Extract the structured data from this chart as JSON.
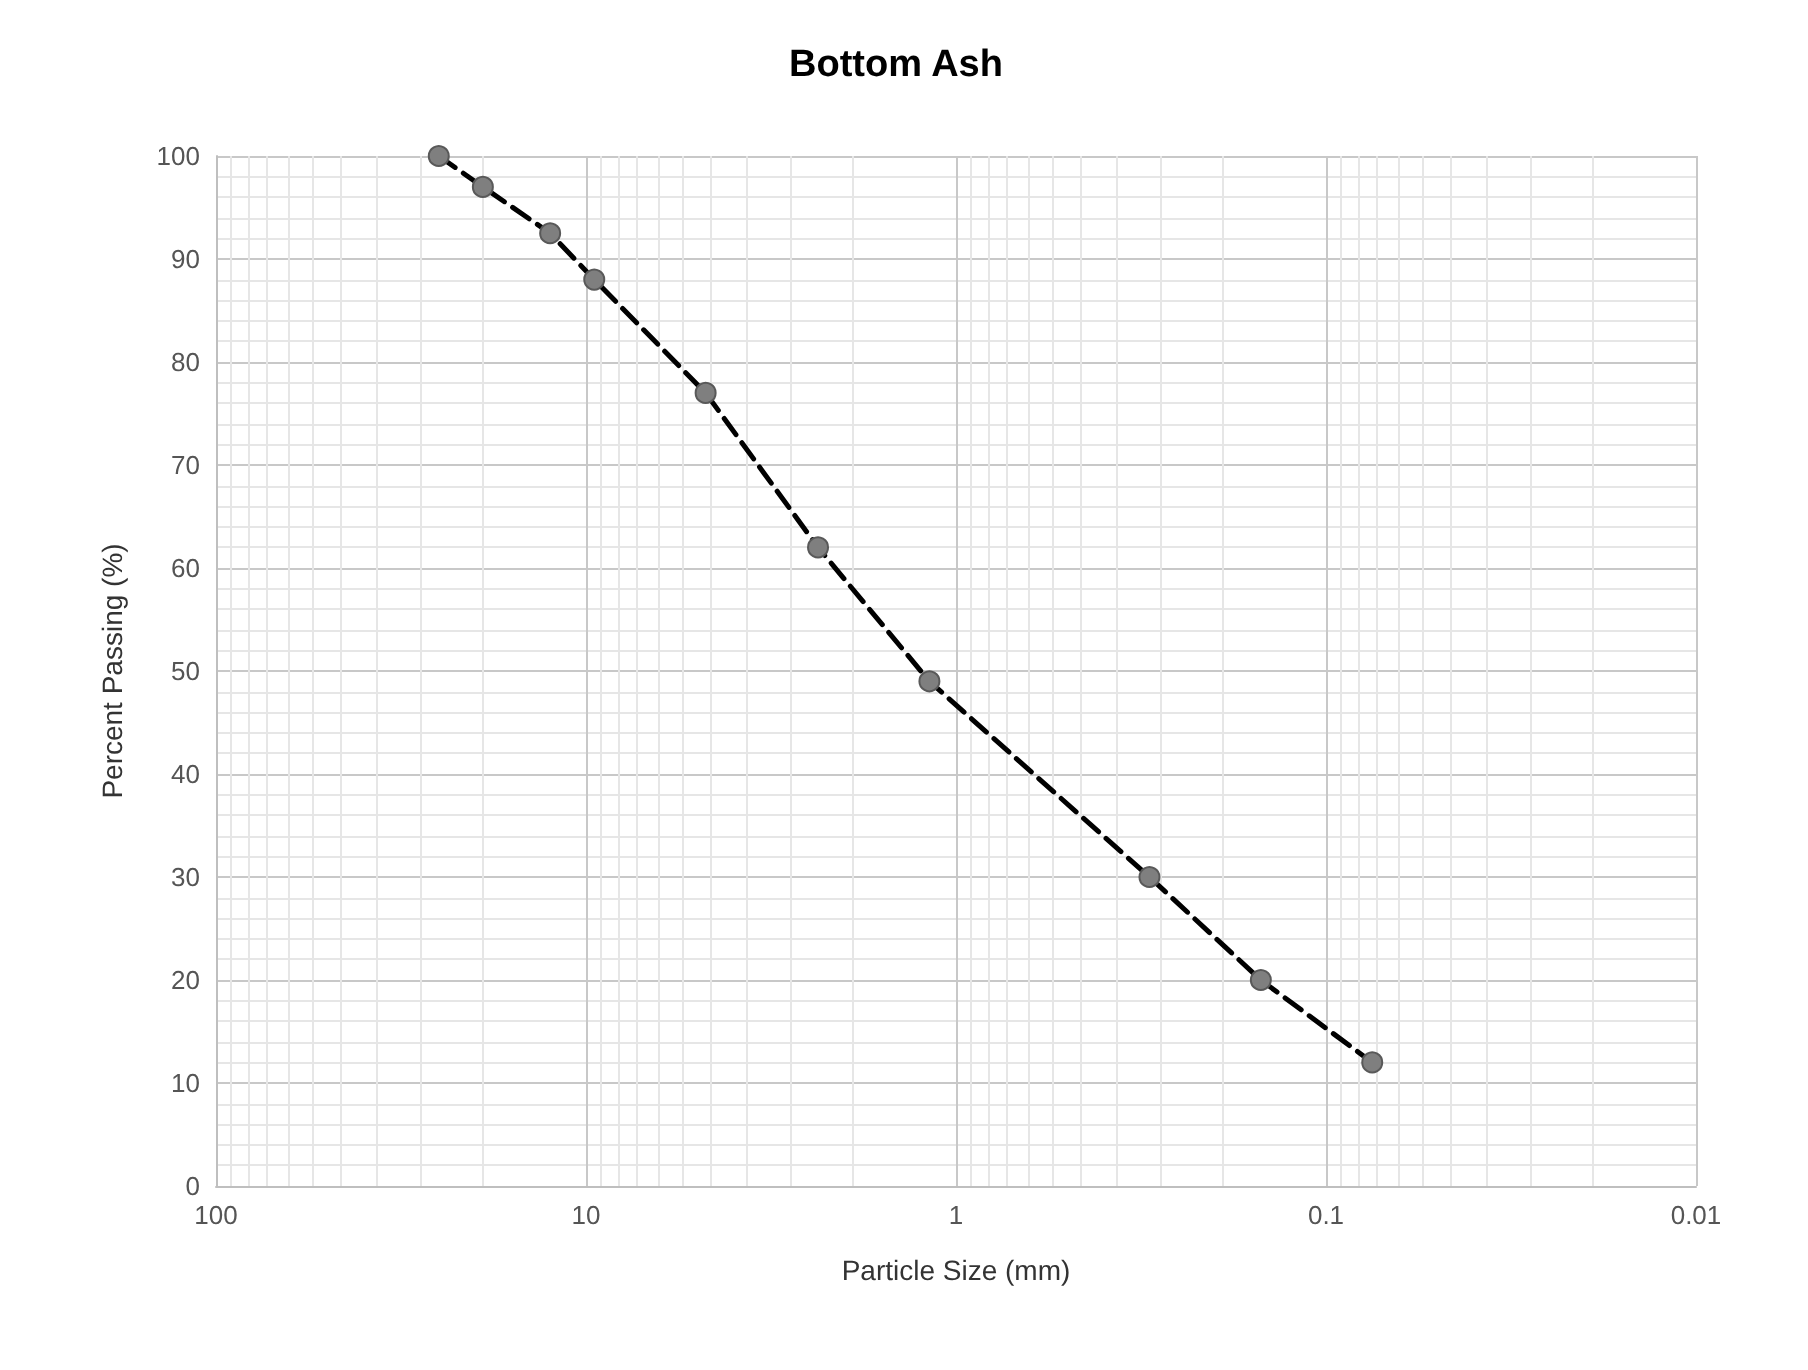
{
  "chart_data": {
    "type": "line",
    "title": "Bottom Ash",
    "xlabel": "Particle Size (mm)",
    "ylabel": "Percent Passing (%)",
    "log": "x",
    "xlim": [
      100,
      0.01
    ],
    "xticks": [
      100,
      10,
      1,
      0.1,
      0.01
    ],
    "ylim": [
      0,
      100
    ],
    "yticks": [
      0,
      10,
      20,
      30,
      40,
      50,
      60,
      70,
      80,
      90,
      100
    ],
    "grid": true,
    "marker": "circle",
    "line_style": "dashed",
    "series": [
      {
        "color": "#000000",
        "x": [
          25,
          19,
          12.5,
          9.5,
          4.75,
          2.36,
          1.18,
          0.3,
          0.15,
          0.075
        ],
        "values": [
          100,
          97,
          92.5,
          88,
          77,
          62,
          49,
          30,
          20,
          12
        ]
      }
    ]
  }
}
